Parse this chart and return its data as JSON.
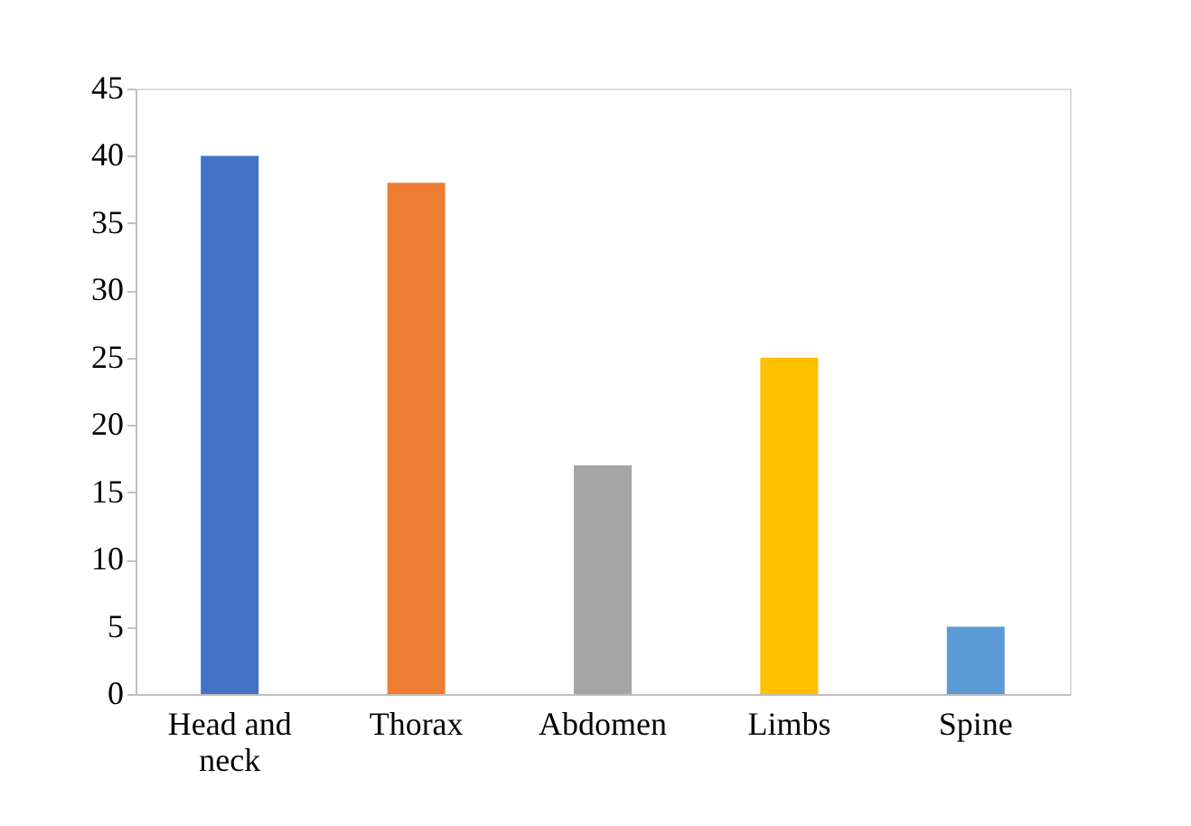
{
  "chart_data": {
    "type": "bar",
    "categories": [
      "Head and neck",
      "Thorax",
      "Abdomen",
      "Limbs",
      "Spine"
    ],
    "values": [
      40,
      38,
      17,
      25,
      5
    ],
    "colors": [
      "#4472c4",
      "#ed7d31",
      "#a5a5a5",
      "#ffc000",
      "#5b9bd5"
    ],
    "ylim": [
      0,
      45
    ],
    "yticks": [
      0,
      5,
      10,
      15,
      20,
      25,
      30,
      35,
      40,
      45
    ],
    "grid": false
  }
}
